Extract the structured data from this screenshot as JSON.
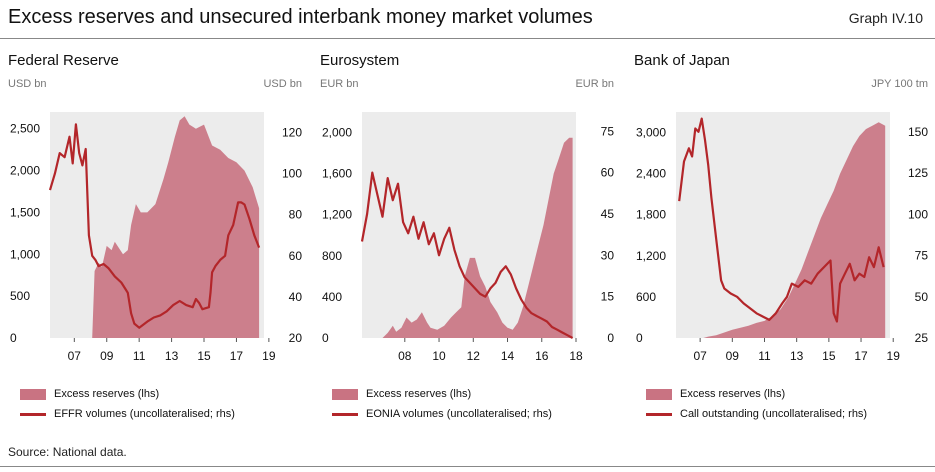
{
  "title": "Excess reserves and unsecured interbank money market volumes",
  "graph_label": "Graph IV.10",
  "source": "Source: National data.",
  "colors": {
    "area": "#c97382",
    "line": "#b3262a",
    "panel_bg": "#ececec"
  },
  "chart_data": [
    {
      "type": "area",
      "title": "Federal Reserve",
      "left_unit": "USD bn",
      "right_unit": "USD bn",
      "x_ticks": [
        7,
        9,
        11,
        13,
        15,
        17,
        19
      ],
      "x_tick_labels": [
        "07",
        "09",
        "11",
        "13",
        "15",
        "17",
        "19"
      ],
      "xlim": [
        2006,
        2019.2
      ],
      "ylim_left": [
        0,
        2700
      ],
      "yticks_left": [
        0,
        500,
        1000,
        1500,
        2000,
        2500
      ],
      "ytick_labels_left": [
        "0",
        "500",
        "1,000",
        "1,500",
        "2,000",
        "2,500"
      ],
      "ylim_right": [
        20,
        130
      ],
      "yticks_right": [
        20,
        40,
        60,
        80,
        100,
        120
      ],
      "ytick_labels_right": [
        "20",
        "40",
        "60",
        "80",
        "100",
        "120"
      ],
      "series": [
        {
          "name": "Excess reserves (lhs)",
          "axis": "left",
          "kind": "area",
          "x": [
            2008.6,
            2008.75,
            2009.0,
            2009.2,
            2009.5,
            2009.8,
            2010.0,
            2010.5,
            2010.8,
            2011.0,
            2011.3,
            2011.6,
            2012.0,
            2012.5,
            2013.0,
            2013.3,
            2013.7,
            2014.0,
            2014.3,
            2014.6,
            2015.0,
            2015.5,
            2016.0,
            2016.5,
            2017.0,
            2017.5,
            2018.0,
            2018.5,
            2018.9
          ],
          "y": [
            0,
            800,
            900,
            850,
            1100,
            1050,
            1150,
            1000,
            1050,
            1350,
            1600,
            1500,
            1500,
            1600,
            1900,
            2100,
            2400,
            2600,
            2650,
            2550,
            2500,
            2550,
            2300,
            2250,
            2150,
            2100,
            2000,
            1800,
            1550
          ]
        },
        {
          "name": "EFFR volumes (uncollateralised; rhs)",
          "axis": "right",
          "kind": "line",
          "x": [
            2006.0,
            2006.3,
            2006.6,
            2006.9,
            2007.2,
            2007.4,
            2007.6,
            2007.8,
            2008.0,
            2008.2,
            2008.4,
            2008.6,
            2008.8,
            2009.0,
            2009.3,
            2009.6,
            2010.0,
            2010.4,
            2010.8,
            2011.0,
            2011.2,
            2011.5,
            2012.0,
            2012.4,
            2012.8,
            2013.2,
            2013.6,
            2014.0,
            2014.4,
            2014.8,
            2015.0,
            2015.2,
            2015.4,
            2015.8,
            2015.9,
            2016.0,
            2016.2,
            2016.5,
            2016.8,
            2017.0,
            2017.3,
            2017.6,
            2017.8,
            2018.0,
            2018.3,
            2018.6,
            2018.9
          ],
          "y": [
            92,
            100,
            110,
            108,
            118,
            105,
            124,
            110,
            104,
            112,
            70,
            60,
            58,
            55,
            56,
            54,
            50,
            47,
            42,
            32,
            27,
            25,
            28,
            30,
            31,
            33,
            36,
            38,
            36,
            35,
            39,
            37,
            34,
            35,
            42,
            52,
            55,
            58,
            60,
            70,
            75,
            86,
            86,
            85,
            78,
            70,
            64
          ]
        }
      ]
    },
    {
      "type": "area",
      "title": "Eurosystem",
      "left_unit": "EUR bn",
      "right_unit": "EUR bn",
      "x_ticks": [
        8,
        10,
        12,
        14,
        16,
        18
      ],
      "x_tick_labels": [
        "08",
        "10",
        "12",
        "14",
        "16",
        "18"
      ],
      "xlim": [
        2006.0,
        2018.5
      ],
      "ylim_left": [
        0,
        2200
      ],
      "yticks_left": [
        0,
        400,
        800,
        1200,
        1600,
        2000
      ],
      "ytick_labels_left": [
        "0",
        "400",
        "800",
        "1,200",
        "1,600",
        "2,000"
      ],
      "ylim_right": [
        0,
        82
      ],
      "yticks_right": [
        0,
        15,
        30,
        45,
        60,
        75
      ],
      "ytick_labels_right": [
        "0",
        "15",
        "30",
        "45",
        "60",
        "75"
      ],
      "series": [
        {
          "name": "Excess reserves (lhs)",
          "axis": "left",
          "kind": "area",
          "x": [
            2007.2,
            2007.5,
            2007.8,
            2008.0,
            2008.3,
            2008.6,
            2008.9,
            2009.2,
            2009.5,
            2009.8,
            2010.0,
            2010.4,
            2010.8,
            2011.2,
            2011.5,
            2011.8,
            2012.0,
            2012.3,
            2012.6,
            2012.9,
            2013.2,
            2013.5,
            2013.9,
            2014.2,
            2014.5,
            2014.8,
            2015.1,
            2015.4,
            2015.7,
            2016.0,
            2016.3,
            2016.6,
            2016.9,
            2017.2,
            2017.5,
            2017.8,
            2018.1,
            2018.3
          ],
          "y": [
            0,
            50,
            120,
            60,
            100,
            200,
            150,
            180,
            250,
            150,
            100,
            80,
            120,
            200,
            250,
            300,
            600,
            780,
            780,
            600,
            500,
            350,
            250,
            150,
            100,
            80,
            150,
            300,
            500,
            700,
            900,
            1100,
            1350,
            1600,
            1750,
            1900,
            1950,
            1950
          ]
        },
        {
          "name": "EONIA volumes (uncollateralised; rhs)",
          "axis": "right",
          "kind": "line",
          "x": [
            2006.0,
            2006.3,
            2006.6,
            2006.9,
            2007.2,
            2007.5,
            2007.8,
            2008.1,
            2008.4,
            2008.7,
            2009.0,
            2009.3,
            2009.6,
            2009.9,
            2010.2,
            2010.5,
            2010.8,
            2011.1,
            2011.4,
            2011.7,
            2012.0,
            2012.3,
            2012.6,
            2012.9,
            2013.2,
            2013.5,
            2013.8,
            2014.1,
            2014.4,
            2014.7,
            2015.0,
            2015.3,
            2015.6,
            2015.9,
            2016.2,
            2016.5,
            2016.8,
            2017.1,
            2017.4,
            2017.7,
            2018.0,
            2018.3
          ],
          "y": [
            35,
            45,
            60,
            52,
            44,
            58,
            50,
            56,
            42,
            38,
            44,
            36,
            42,
            34,
            38,
            30,
            36,
            40,
            32,
            26,
            22,
            20,
            18,
            16,
            15,
            18,
            20,
            24,
            26,
            23,
            18,
            14,
            11,
            9,
            8,
            7,
            6,
            4,
            3,
            2,
            1,
            0
          ]
        }
      ]
    },
    {
      "type": "area",
      "title": "Bank of Japan",
      "left_unit": "",
      "right_unit": "JPY 100 tm",
      "x_ticks": [
        7,
        9,
        11,
        13,
        15,
        17,
        19
      ],
      "x_tick_labels": [
        "07",
        "09",
        "11",
        "13",
        "15",
        "17",
        "19"
      ],
      "xlim": [
        2006.0,
        2019.3
      ],
      "ylim_left": [
        0,
        3300
      ],
      "yticks_left": [
        0,
        600,
        1200,
        1800,
        2400,
        3000
      ],
      "ytick_labels_left": [
        "0",
        "600",
        "1,200",
        "1,800",
        "2,400",
        "3,000"
      ],
      "ylim_right": [
        25,
        162
      ],
      "yticks_right": [
        25,
        50,
        75,
        100,
        125,
        150
      ],
      "ytick_labels_right": [
        "25",
        "50",
        "75",
        "100",
        "125",
        "150"
      ],
      "series": [
        {
          "name": "Excess reserves (lhs)",
          "axis": "left",
          "kind": "area",
          "x": [
            2007.7,
            2008.0,
            2008.5,
            2009.0,
            2009.5,
            2010.0,
            2010.5,
            2011.0,
            2011.5,
            2012.0,
            2012.5,
            2013.0,
            2013.4,
            2013.8,
            2014.2,
            2014.6,
            2015.0,
            2015.4,
            2015.8,
            2016.2,
            2016.6,
            2017.0,
            2017.4,
            2017.8,
            2018.2,
            2018.6,
            2019.0
          ],
          "y": [
            0,
            20,
            40,
            80,
            120,
            150,
            180,
            220,
            250,
            320,
            420,
            600,
            800,
            1000,
            1250,
            1500,
            1750,
            1950,
            2150,
            2400,
            2600,
            2800,
            2950,
            3050,
            3100,
            3150,
            3100
          ]
        },
        {
          "name": "Call outstanding (uncollateralised; rhs)",
          "axis": "right",
          "kind": "line",
          "x": [
            2006.2,
            2006.5,
            2006.8,
            2007.0,
            2007.2,
            2007.4,
            2007.6,
            2007.8,
            2008.0,
            2008.2,
            2008.5,
            2008.8,
            2009.0,
            2009.4,
            2009.8,
            2010.2,
            2010.6,
            2011.0,
            2011.4,
            2011.8,
            2012.2,
            2012.6,
            2012.9,
            2013.2,
            2013.6,
            2014.0,
            2014.4,
            2014.8,
            2015.2,
            2015.6,
            2015.8,
            2016.0,
            2016.2,
            2016.5,
            2016.8,
            2017.1,
            2017.4,
            2017.7,
            2018.0,
            2018.3,
            2018.6,
            2018.9
          ],
          "y": [
            108,
            132,
            140,
            135,
            152,
            150,
            158,
            145,
            130,
            110,
            85,
            60,
            55,
            52,
            50,
            46,
            43,
            40,
            38,
            36,
            40,
            46,
            50,
            58,
            56,
            60,
            58,
            64,
            68,
            72,
            40,
            35,
            58,
            64,
            70,
            60,
            64,
            62,
            74,
            68,
            80,
            68
          ]
        }
      ]
    }
  ]
}
